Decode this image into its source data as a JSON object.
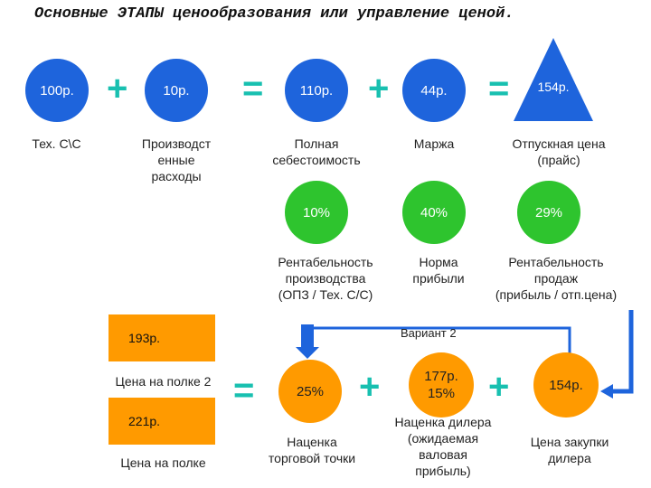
{
  "title": "Основные ЭТАПЫ ценообразования или управление ценой.",
  "row1": {
    "c1": "100р.",
    "c2": "10р.",
    "c3": "110р.",
    "c4": "44р.",
    "c5": "154р.",
    "l1": "Тех. С\\С",
    "l2": "Производст\nенные\nрасходы",
    "l3": "Полная\nсебестоимость",
    "l4": "Маржа",
    "l5": "Отпускная цена\n(прайс)"
  },
  "row2": {
    "g1": "10%",
    "g2": "40%",
    "g3": "29%",
    "l1": "Рентабельность\nпроизводства\n(ОПЗ / Тех. С/С)",
    "l2": "Норма\nприбыли",
    "l3": "Рентабельность\nпродаж\n(прибыль / отп.цена)"
  },
  "variant": "Вариант 2",
  "bottom": {
    "r1": "193р.",
    "r1_label": "Цена на полке 2",
    "r2": "221р.",
    "r2_label": "Цена на полке",
    "o1": "25%",
    "o1_label": "Наценка\nторговой точки",
    "o2": "177р.\n15%",
    "o2_label": "Наценка дилера\n(ожидаемая\nваловая\nприбыль)",
    "o3": "154р.",
    "o3_label": "Цена закупки\nдилера"
  },
  "operators": {
    "plus": "+",
    "equals": "="
  },
  "colors": {
    "blue": "#1e64dc",
    "green": "#2ec42e",
    "orange": "#ff9a00",
    "operator": "#18c0b0",
    "arrow": "#1e64dc"
  }
}
